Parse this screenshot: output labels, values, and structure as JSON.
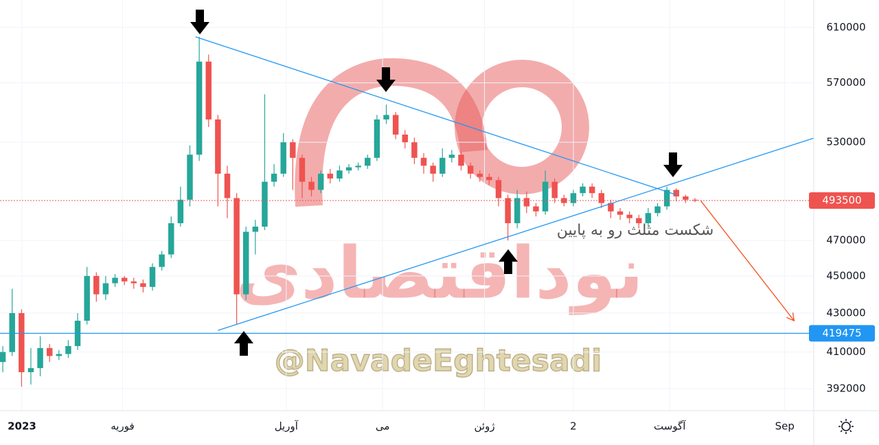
{
  "chart_data": {
    "type": "candlestick",
    "log_scale": true,
    "grid": true,
    "ylim": [
      381600,
      630800
    ],
    "yticks": [
      392000,
      410000,
      430000,
      450000,
      470000,
      530000,
      570000,
      610000
    ],
    "xlim": [
      -0.3,
      86.7
    ],
    "xticks": [
      {
        "value": 2.05,
        "label": "2023"
      },
      {
        "value": 12.8,
        "label": "فوریه"
      },
      {
        "value": 30.3,
        "label": "آوریل"
      },
      {
        "value": 40.6,
        "label": "می"
      },
      {
        "value": 51.5,
        "label": "ژوئن"
      },
      {
        "value": 61.0,
        "label": "2"
      },
      {
        "value": 71.3,
        "label": "آگوست"
      },
      {
        "value": 83.6,
        "label": "Sep"
      }
    ],
    "up_color": "#26a69a",
    "down_color": "#ef5350",
    "candles": [
      [
        405000,
        413000,
        400000,
        410000
      ],
      [
        410000,
        443000,
        408000,
        430000
      ],
      [
        430000,
        432000,
        393000,
        400000
      ],
      [
        400000,
        412000,
        394000,
        402000
      ],
      [
        402000,
        418000,
        398000,
        412000
      ],
      [
        412000,
        414000,
        405000,
        408000
      ],
      [
        408000,
        411000,
        406000,
        409000
      ],
      [
        409000,
        416000,
        407000,
        413000
      ],
      [
        413000,
        430000,
        411000,
        426000
      ],
      [
        426000,
        455000,
        424000,
        450000
      ],
      [
        450000,
        452000,
        436000,
        440000
      ],
      [
        440000,
        450000,
        437000,
        446000
      ],
      [
        446000,
        451000,
        444000,
        449000
      ],
      [
        449000,
        450000,
        445000,
        447000
      ],
      [
        447000,
        449000,
        443000,
        446000
      ],
      [
        446000,
        448000,
        441000,
        444000
      ],
      [
        444000,
        457000,
        442000,
        455000
      ],
      [
        455000,
        464000,
        453000,
        462000
      ],
      [
        462000,
        484000,
        460000,
        480000
      ],
      [
        480000,
        502000,
        478000,
        494000
      ],
      [
        494000,
        528000,
        490000,
        522000
      ],
      [
        522000,
        603000,
        518000,
        585000
      ],
      [
        585000,
        590000,
        540000,
        545000
      ],
      [
        545000,
        548000,
        490000,
        510000
      ],
      [
        510000,
        515000,
        483000,
        495000
      ],
      [
        495000,
        498000,
        424000,
        440000
      ],
      [
        440000,
        478000,
        437000,
        475000
      ],
      [
        475000,
        482000,
        462000,
        478000
      ],
      [
        478000,
        562000,
        476000,
        505000
      ],
      [
        505000,
        516000,
        502000,
        510000
      ],
      [
        510000,
        536000,
        508000,
        530000
      ],
      [
        530000,
        532000,
        500000,
        520000
      ],
      [
        520000,
        522000,
        495000,
        505000
      ],
      [
        505000,
        508000,
        496000,
        500000
      ],
      [
        500000,
        512000,
        498000,
        510000
      ],
      [
        510000,
        513000,
        504000,
        507000
      ],
      [
        507000,
        515000,
        505000,
        512000
      ],
      [
        512000,
        516000,
        510000,
        514000
      ],
      [
        514000,
        517000,
        512000,
        515000
      ],
      [
        515000,
        522000,
        513000,
        520000
      ],
      [
        520000,
        548000,
        518000,
        545000
      ],
      [
        545000,
        555000,
        542000,
        548000
      ],
      [
        548000,
        550000,
        532000,
        535000
      ],
      [
        535000,
        538000,
        526000,
        530000
      ],
      [
        530000,
        533000,
        516000,
        520000
      ],
      [
        520000,
        523000,
        510000,
        515000
      ],
      [
        515000,
        517000,
        505000,
        510000
      ],
      [
        510000,
        526000,
        508000,
        520000
      ],
      [
        520000,
        525000,
        517000,
        522000
      ],
      [
        522000,
        524000,
        512000,
        515000
      ],
      [
        515000,
        517000,
        507000,
        510000
      ],
      [
        510000,
        512000,
        505000,
        508000
      ],
      [
        508000,
        510000,
        503000,
        506000
      ],
      [
        506000,
        508000,
        490000,
        495000
      ],
      [
        495000,
        497000,
        470000,
        480000
      ],
      [
        480000,
        500000,
        477000,
        495000
      ],
      [
        495000,
        499000,
        486000,
        490000
      ],
      [
        490000,
        492000,
        484000,
        487000
      ],
      [
        487000,
        512000,
        485000,
        505000
      ],
      [
        505000,
        507000,
        492000,
        495000
      ],
      [
        495000,
        497000,
        490000,
        492000
      ],
      [
        492000,
        500000,
        490000,
        498000
      ],
      [
        498000,
        504000,
        496000,
        502000
      ],
      [
        502000,
        504000,
        495000,
        498000
      ],
      [
        498000,
        500000,
        489000,
        492000
      ],
      [
        492000,
        494000,
        483000,
        487000
      ],
      [
        487000,
        489000,
        482000,
        485000
      ],
      [
        485000,
        487000,
        480000,
        483000
      ],
      [
        483000,
        485000,
        477000,
        480000
      ],
      [
        480000,
        489000,
        478000,
        486000
      ],
      [
        486000,
        492000,
        484000,
        490000
      ],
      [
        490000,
        502000,
        488000,
        500000
      ],
      [
        500000,
        501000,
        493000,
        496000
      ],
      [
        496000,
        497000,
        492000,
        494000
      ],
      [
        494000,
        495000,
        492500,
        493500
      ]
    ],
    "trendlines": [
      {
        "color": "#2196f3",
        "x": [
          20.6,
          72.0
        ],
        "y": [
          603000,
          497000
        ]
      },
      {
        "color": "#2196f3",
        "x": [
          23.0,
          86.7
        ],
        "y": [
          421000,
          532700
        ]
      }
    ],
    "forecast_arrow": {
      "color": "#f4511e",
      "x": [
        74.6,
        84.6
      ],
      "y": [
        493500,
        426000
      ]
    },
    "support_level": 419475,
    "support_color": "#2196f3",
    "last_price": 493500,
    "last_price_color": "#ef5350",
    "annotation": "شکست مثلث رو به پایین",
    "watermark_logo": "نوداقتصادی",
    "watermark_handle": "@NavadeEghtesadi"
  }
}
